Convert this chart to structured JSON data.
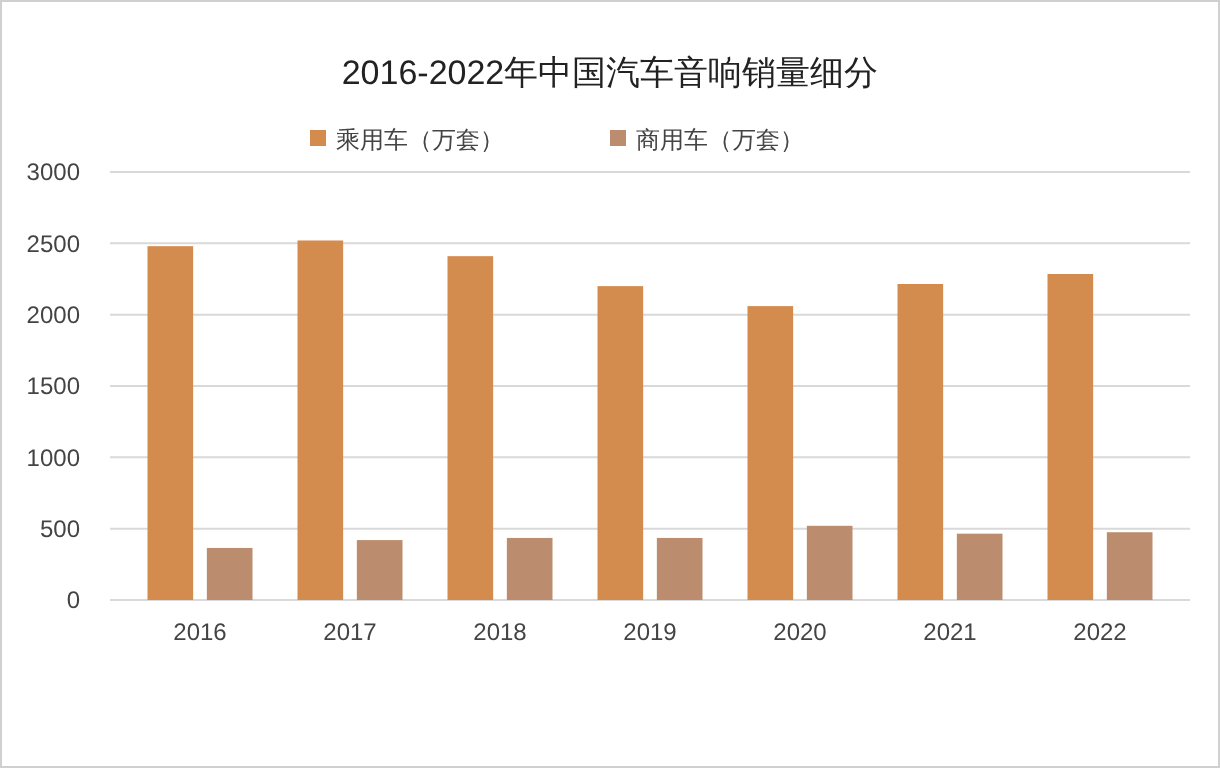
{
  "chart_data": {
    "type": "bar",
    "title": "2016-2022年中国汽车音响销量细分",
    "categories": [
      "2016",
      "2017",
      "2018",
      "2019",
      "2020",
      "2021",
      "2022"
    ],
    "series": [
      {
        "name": "乘用车（万套）",
        "color": "#d48b4e",
        "values": [
          2480,
          2520,
          2410,
          2200,
          2060,
          2215,
          2285
        ]
      },
      {
        "name": "商用车（万套）",
        "color": "#bb8d6e",
        "values": [
          365,
          420,
          435,
          435,
          520,
          465,
          475
        ]
      }
    ],
    "ylim": [
      0,
      3000
    ],
    "yticks": [
      0,
      500,
      1000,
      1500,
      2000,
      2500,
      3000
    ],
    "grid": "y",
    "legend": "top"
  }
}
